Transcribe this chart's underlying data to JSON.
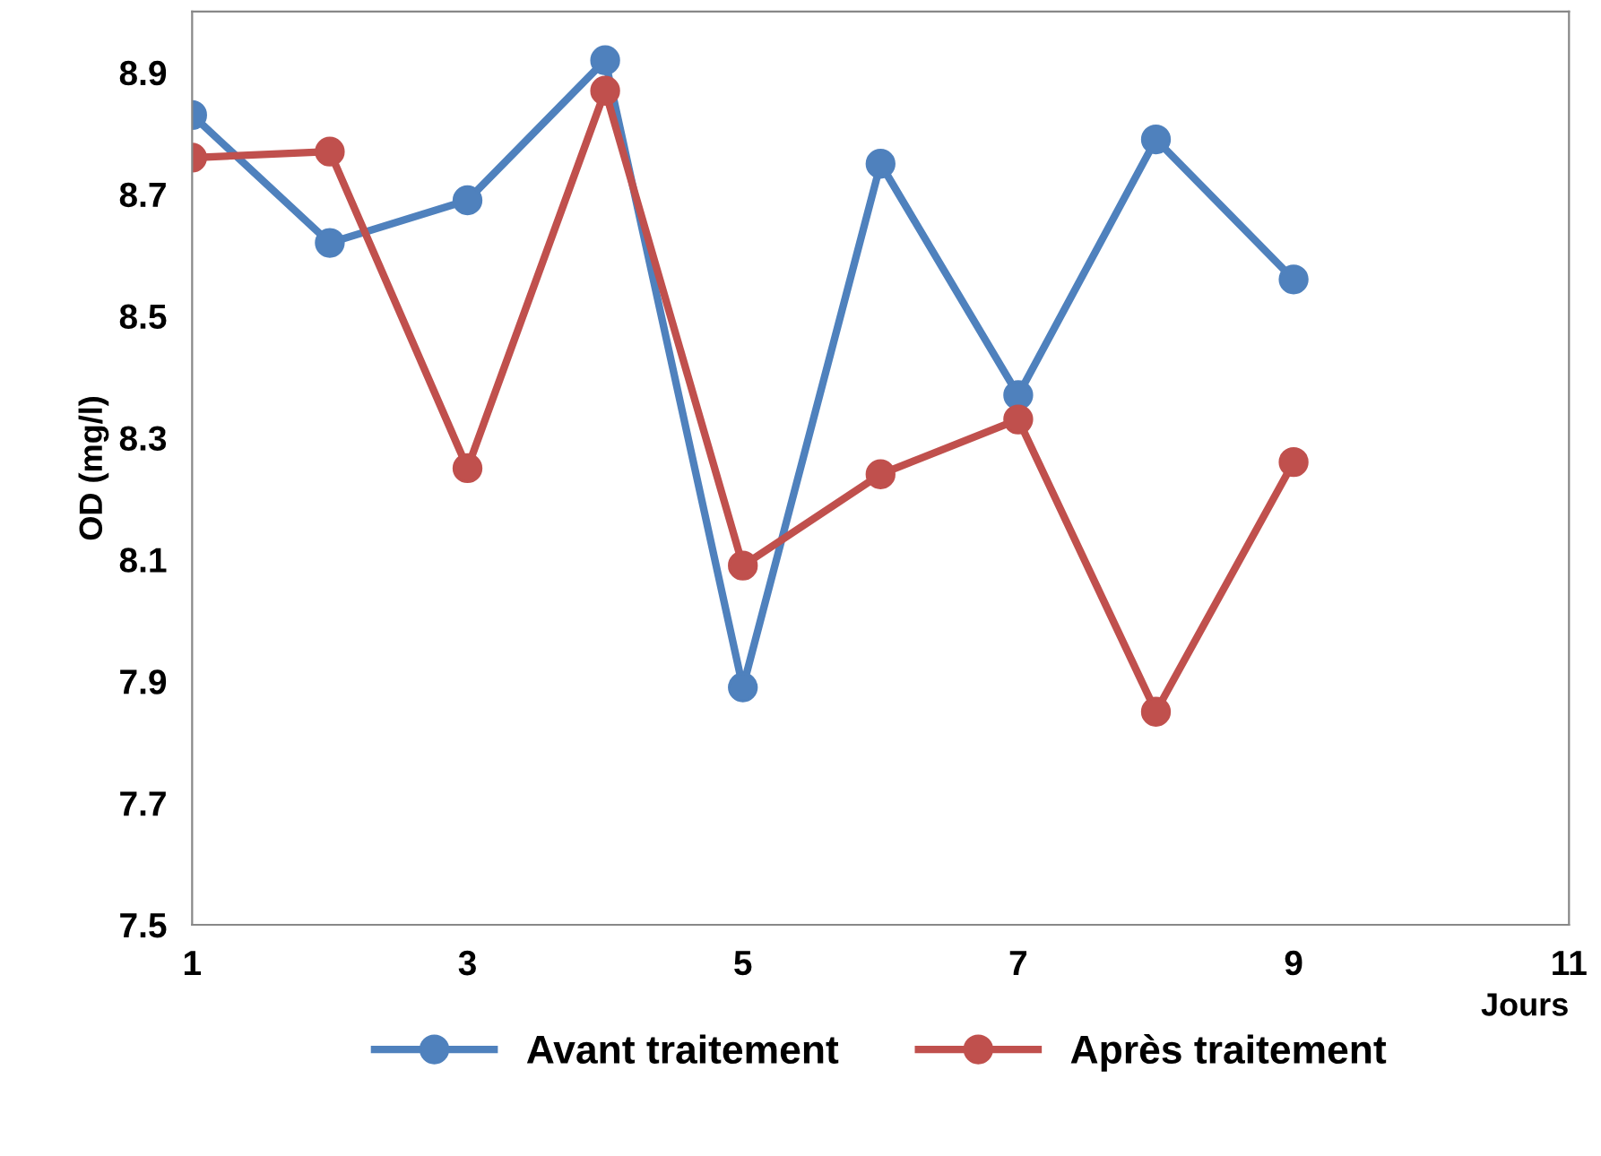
{
  "chart_data": {
    "type": "line",
    "xlabel": "Jours",
    "ylabel": "OD (mg/l)",
    "x": [
      1,
      2,
      3,
      4,
      5,
      6,
      7,
      8,
      9
    ],
    "series": [
      {
        "name": "Avant traitement",
        "color": "#4f81bd",
        "values": [
          8.83,
          8.62,
          8.69,
          8.92,
          7.89,
          8.75,
          8.37,
          8.79,
          8.56
        ]
      },
      {
        "name": "Après traitement",
        "color": "#c0504d",
        "values": [
          8.76,
          8.77,
          8.25,
          8.87,
          8.09,
          8.24,
          8.33,
          7.85,
          8.26
        ]
      }
    ],
    "xlim": [
      1,
      11
    ],
    "xticks": [
      1,
      3,
      5,
      7,
      9,
      11
    ],
    "ylim": [
      7.5,
      9.0
    ],
    "yticks": [
      {
        "value": 7.5,
        "label": "7.5"
      },
      {
        "value": 7.7,
        "label": "7.7"
      },
      {
        "value": 7.9,
        "label": "7.9"
      },
      {
        "value": 8.1,
        "label": "8.1"
      },
      {
        "value": 8.3,
        "label": "8.3"
      },
      {
        "value": 8.5,
        "label": "8.5"
      },
      {
        "value": 8.7,
        "label": "8.7"
      },
      {
        "value": 8.9,
        "label": "8.9"
      }
    ],
    "marker": "circle",
    "line_style": "solid",
    "grid": false,
    "legend": "bottom"
  }
}
